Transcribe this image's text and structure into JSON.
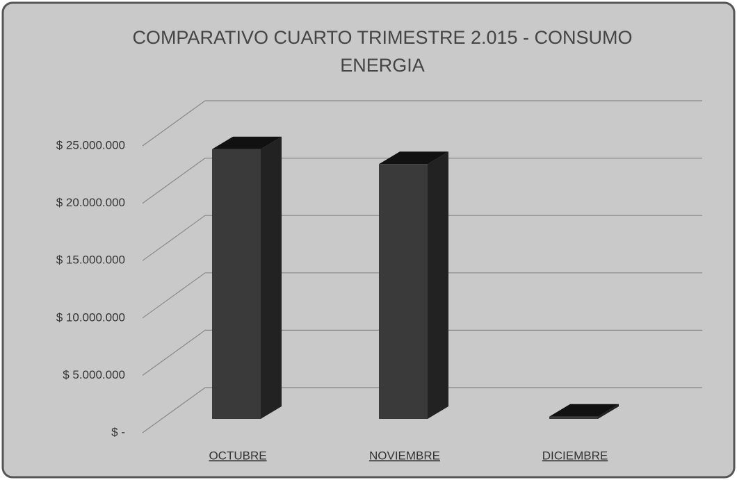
{
  "chart_data": {
    "type": "bar3d",
    "title": "COMPARATIVO CUARTO TRIMESTRE 2.015 - CONSUMO ENERGIA",
    "categories": [
      "OCTUBRE",
      "NOVIEMBRE",
      "DICIEMBRE"
    ],
    "values": [
      23500000,
      22200000,
      200000
    ],
    "color": "#3a3a3a",
    "ylim": [
      0,
      25000000
    ],
    "yticks": [
      {
        "value": 0,
        "label": "$ -"
      },
      {
        "value": 5000000,
        "label": "$ 5.000.000"
      },
      {
        "value": 10000000,
        "label": "$ 10.000.000"
      },
      {
        "value": 15000000,
        "label": "$ 15.000.000"
      },
      {
        "value": 20000000,
        "label": "$ 20.000.000"
      },
      {
        "value": 25000000,
        "label": "$ 25.000.000"
      }
    ],
    "grid": true
  }
}
